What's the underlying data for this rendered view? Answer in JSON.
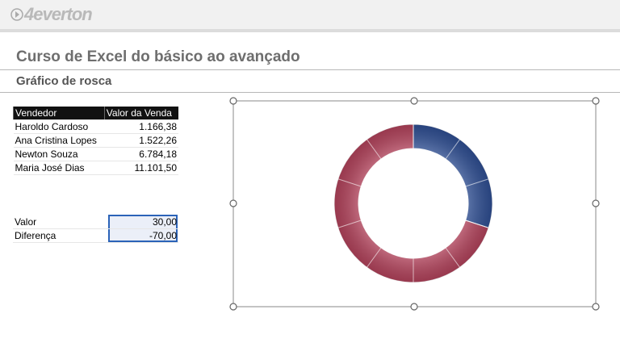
{
  "header": {
    "logo": "4everton"
  },
  "title": "Curso de Excel do básico ao avançado",
  "subtitle": "Gráfico de rosca",
  "sales_table": {
    "columns": [
      "Vendedor",
      "Valor da Venda"
    ],
    "rows": [
      [
        "Haroldo Cardoso",
        "1.166,38"
      ],
      [
        "Ana Cristina Lopes",
        "1.522,26"
      ],
      [
        "Newton Souza",
        "6.784,18"
      ],
      [
        "Maria José Dias",
        "11.101,50"
      ]
    ]
  },
  "calc_table": {
    "rows": [
      [
        "Valor",
        "30,00"
      ],
      [
        "Diferença",
        "-70,00"
      ]
    ]
  },
  "chart_data": {
    "type": "doughnut",
    "values": [
      30,
      70
    ],
    "colors": [
      "#2f4f94",
      "#b4435c"
    ]
  }
}
